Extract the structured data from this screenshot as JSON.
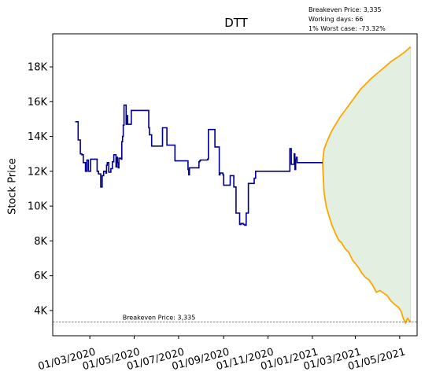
{
  "annotations": {
    "line1": "Breakeven Price: 3,335",
    "line2": "Working days: 66",
    "line3": "1% Worst case: -73.32%"
  },
  "chart_data": {
    "type": "line",
    "title": "DTT",
    "xlabel": "",
    "ylabel": "Stock Price",
    "ylim": [
      2550,
      19900
    ],
    "xlim": [
      "2020-01-10",
      "2021-05-25"
    ],
    "y_ticks": [
      4000,
      6000,
      8000,
      10000,
      12000,
      14000,
      16000,
      18000
    ],
    "y_tick_labels": [
      "4K",
      "6K",
      "8K",
      "10K",
      "12K",
      "14K",
      "16K",
      "18K"
    ],
    "x_ticks": [
      "2020-03-01",
      "2020-05-01",
      "2020-07-01",
      "2020-09-01",
      "2020-11-01",
      "2021-01-01",
      "2021-03-01",
      "2021-05-01"
    ],
    "x_tick_labels": [
      "01/03/2020",
      "01/05/2020",
      "01/07/2020",
      "01/09/2020",
      "01/11/2020",
      "01/01/2021",
      "01/03/2021",
      "01/05/2021"
    ],
    "breakeven": {
      "value": 3335,
      "label": "Breakeven Price: 3,335",
      "color": "#e02020"
    },
    "colors": {
      "history": "#00008b",
      "forecast": "#ffa500",
      "band_fill": "#e3efe0",
      "band_edge": "#c7ddc4"
    },
    "history": {
      "x": [
        "2020-02-10",
        "2020-02-13",
        "2020-02-14",
        "2020-02-17",
        "2020-02-19",
        "2020-02-21",
        "2020-02-24",
        "2020-02-26",
        "2020-02-28",
        "2020-03-02",
        "2020-03-04",
        "2020-03-06",
        "2020-03-09",
        "2020-03-11",
        "2020-03-13",
        "2020-03-16",
        "2020-03-18",
        "2020-03-19",
        "2020-03-20",
        "2020-03-23",
        "2020-03-24",
        "2020-03-25",
        "2020-03-27",
        "2020-03-30",
        "2020-04-01",
        "2020-04-03",
        "2020-04-06",
        "2020-04-07",
        "2020-04-08",
        "2020-04-09",
        "2020-04-10",
        "2020-04-13",
        "2020-04-14",
        "2020-04-15",
        "2020-04-16",
        "2020-04-17",
        "2020-04-20",
        "2020-04-21",
        "2020-04-22",
        "2020-04-23",
        "2020-04-27",
        "2020-04-29",
        "2020-05-04",
        "2020-05-20",
        "2020-05-21",
        "2020-05-22",
        "2020-05-25",
        "2020-05-26",
        "2020-06-08",
        "2020-06-09",
        "2020-06-10",
        "2020-06-11",
        "2020-06-15",
        "2020-06-22",
        "2020-06-25",
        "2020-06-26",
        "2020-07-10",
        "2020-07-13",
        "2020-07-14",
        "2020-07-15",
        "2020-07-16",
        "2020-07-29",
        "2020-07-30",
        "2020-07-31",
        "2020-08-10",
        "2020-08-11",
        "2020-08-12",
        "2020-08-14",
        "2020-08-17",
        "2020-08-20",
        "2020-08-26",
        "2020-08-27",
        "2020-08-31",
        "2020-09-01",
        "2020-09-07",
        "2020-09-08",
        "2020-09-09",
        "2020-09-10",
        "2020-09-11",
        "2020-09-14",
        "2020-09-15",
        "2020-09-18",
        "2020-09-22",
        "2020-09-23",
        "2020-09-25",
        "2020-09-28",
        "2020-09-30",
        "2020-10-02",
        "2020-10-05",
        "2020-10-12",
        "2020-10-13",
        "2020-10-14",
        "2020-10-15",
        "2020-11-25",
        "2020-11-26",
        "2020-11-30",
        "2020-12-01",
        "2020-12-02",
        "2020-12-03",
        "2020-12-04",
        "2020-12-07",
        "2020-12-08",
        "2020-12-09",
        "2020-12-10",
        "2020-12-11",
        "2020-12-14",
        "2021-01-15"
      ],
      "y": [
        14850,
        14850,
        13800,
        13000,
        12950,
        12500,
        12000,
        12650,
        12000,
        12700,
        12700,
        12700,
        12700,
        12000,
        11850,
        11100,
        11750,
        11750,
        12000,
        11900,
        12350,
        12500,
        11950,
        12150,
        12550,
        12950,
        12250,
        12800,
        12500,
        12200,
        12750,
        12700,
        13700,
        14000,
        14650,
        15800,
        14700,
        15200,
        14700,
        14700,
        15500,
        15500,
        15500,
        15500,
        14500,
        14100,
        13450,
        13450,
        13450,
        14500,
        14500,
        14500,
        13500,
        13500,
        13500,
        12600,
        12600,
        12600,
        12100,
        11800,
        12200,
        12550,
        12600,
        12650,
        12700,
        14400,
        14400,
        14400,
        14400,
        13400,
        11800,
        11900,
        11800,
        11200,
        11200,
        11200,
        11200,
        11750,
        11750,
        11750,
        11100,
        9600,
        9600,
        8950,
        9000,
        8950,
        8900,
        9600,
        11300,
        11300,
        11600,
        11600,
        12000,
        12000,
        12000,
        12000,
        13300,
        13300,
        12400,
        12400,
        13000,
        12100,
        12700,
        12800,
        12500,
        12500,
        12500
      ]
    },
    "forecast_upper": {
      "x": [
        "2021-01-15",
        "2021-01-17",
        "2021-01-20",
        "2021-01-24",
        "2021-01-28",
        "2021-02-02",
        "2021-02-08",
        "2021-02-15",
        "2021-02-22",
        "2021-03-01",
        "2021-03-08",
        "2021-03-15",
        "2021-03-22",
        "2021-03-29",
        "2021-04-05",
        "2021-04-12",
        "2021-04-19",
        "2021-04-26",
        "2021-05-03",
        "2021-05-08",
        "2021-05-12",
        "2021-05-16"
      ],
      "y": [
        12500,
        13250,
        13600,
        14000,
        14350,
        14700,
        15100,
        15500,
        15900,
        16300,
        16700,
        17000,
        17300,
        17550,
        17800,
        18050,
        18300,
        18500,
        18700,
        18850,
        19000,
        19150
      ]
    },
    "forecast_lower": {
      "x": [
        "2021-01-15",
        "2021-01-17",
        "2021-01-20",
        "2021-01-24",
        "2021-01-28",
        "2021-02-02",
        "2021-02-06",
        "2021-02-10",
        "2021-02-15",
        "2021-02-20",
        "2021-02-25",
        "2021-03-01",
        "2021-03-05",
        "2021-03-10",
        "2021-03-15",
        "2021-03-20",
        "2021-03-25",
        "2021-03-30",
        "2021-04-04",
        "2021-04-09",
        "2021-04-14",
        "2021-04-19",
        "2021-04-24",
        "2021-04-29",
        "2021-05-03",
        "2021-05-06",
        "2021-05-09",
        "2021-05-12",
        "2021-05-16"
      ],
      "y": [
        12500,
        10800,
        10000,
        9400,
        8900,
        8400,
        8050,
        7900,
        7550,
        7350,
        6900,
        6700,
        6500,
        6150,
        5900,
        5750,
        5450,
        5050,
        5150,
        5000,
        4850,
        4550,
        4350,
        4200,
        3950,
        3550,
        3300,
        3550,
        3335
      ]
    }
  }
}
